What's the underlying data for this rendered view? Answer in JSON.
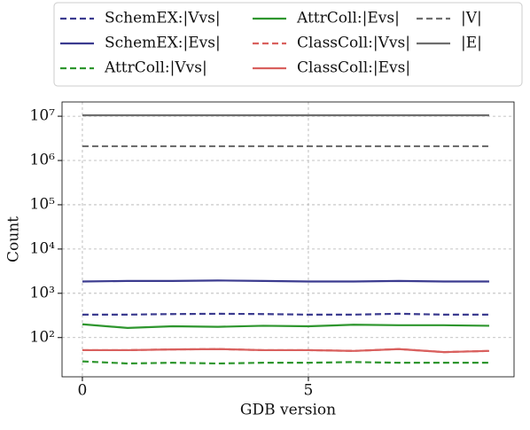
{
  "chart_data": {
    "type": "line",
    "x_label": "GDB version",
    "y_label": "Count",
    "x": [
      0,
      1,
      2,
      3,
      4,
      5,
      6,
      7,
      8,
      9
    ],
    "xlim": [
      -0.45,
      9.55
    ],
    "xticks": [
      0,
      5
    ],
    "ylim": [
      13,
      21000000
    ],
    "log_y": true,
    "yticks": [
      {
        "value": 100,
        "label": "10²"
      },
      {
        "value": 1000,
        "label": "10³"
      },
      {
        "value": 10000,
        "label": "10⁴"
      },
      {
        "value": 100000,
        "label": "10⁵"
      },
      {
        "value": 1000000,
        "label": "10⁶"
      },
      {
        "value": 10000000,
        "label": "10⁷"
      }
    ],
    "grid": true,
    "legend": "top",
    "series": [
      {
        "name": "SchemEX:|Vvs|",
        "color": "#3b3b8f",
        "dash": true,
        "values": [
          330,
          330,
          340,
          345,
          340,
          330,
          330,
          345,
          330,
          330
        ]
      },
      {
        "name": "SchemEX:|Evs|",
        "color": "#3b3b8f",
        "dash": false,
        "values": [
          1850,
          1900,
          1900,
          1950,
          1900,
          1850,
          1850,
          1900,
          1850,
          1850
        ]
      },
      {
        "name": "AttrColl:|Vvs|",
        "color": "#2e962e",
        "dash": true,
        "values": [
          29,
          26,
          27,
          26,
          27,
          27,
          28,
          27,
          27,
          27
        ]
      },
      {
        "name": "AttrColl:|Evs|",
        "color": "#2e962e",
        "dash": false,
        "values": [
          200,
          165,
          180,
          175,
          185,
          180,
          195,
          190,
          190,
          185
        ]
      },
      {
        "name": "ClassColl:|Vvs|",
        "color": "#d9605e",
        "dash": true,
        "values": [
          52,
          52,
          54,
          55,
          52,
          52,
          50,
          55,
          47,
          50
        ]
      },
      {
        "name": "ClassColl:|Evs|",
        "color": "#d9605e",
        "dash": false,
        "values": [
          52,
          52,
          54,
          55,
          52,
          52,
          50,
          55,
          47,
          50
        ]
      },
      {
        "name": "|V|",
        "color": "#6e6e6e",
        "dash": true,
        "values": [
          2100000,
          2100000,
          2100000,
          2100000,
          2100000,
          2100000,
          2100000,
          2100000,
          2100000,
          2100000
        ]
      },
      {
        "name": "|E|",
        "color": "#6e6e6e",
        "dash": false,
        "values": [
          10500000,
          10500000,
          10500000,
          10500000,
          10500000,
          10500000,
          10500000,
          10500000,
          10500000,
          10500000
        ]
      }
    ]
  }
}
